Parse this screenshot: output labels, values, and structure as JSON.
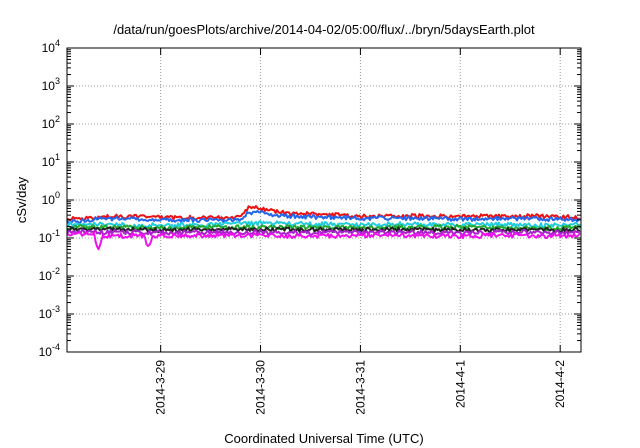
{
  "chart_data": {
    "type": "line",
    "title": "/data/run/goesPlots/archive/2014-04-02/05:00/flux/../bryn/5daysEarth.plot",
    "xlabel": "Coordinated Universal Time (UTC)",
    "ylabel": "cSv/day",
    "yscale": "log",
    "ylim": [
      0.0001,
      10000
    ],
    "y_ticks": [
      {
        "value": 0.0001,
        "base": "10",
        "exp": "-4"
      },
      {
        "value": 0.001,
        "base": "10",
        "exp": "-3"
      },
      {
        "value": 0.01,
        "base": "10",
        "exp": "-2"
      },
      {
        "value": 0.1,
        "base": "10",
        "exp": "-1"
      },
      {
        "value": 1,
        "base": "10",
        "exp": "0"
      },
      {
        "value": 10,
        "base": "10",
        "exp": "1"
      },
      {
        "value": 100,
        "base": "10",
        "exp": "2"
      },
      {
        "value": 1000,
        "base": "10",
        "exp": "3"
      },
      {
        "value": 10000,
        "base": "10",
        "exp": "4"
      }
    ],
    "xlim": [
      "2014-03-28T01:30",
      "2014-04-02T05:00"
    ],
    "x_ticks": [
      {
        "value": "2014-03-29T00:00",
        "label": "2014-3-29"
      },
      {
        "value": "2014-03-30T00:00",
        "label": "2014-3-30"
      },
      {
        "value": "2014-03-31T00:00",
        "label": "2014-3-31"
      },
      {
        "value": "2014-04-01T00:00",
        "label": "2014-4-1"
      },
      {
        "value": "2014-04-02T00:00",
        "label": "2014-4-2"
      }
    ],
    "grid": true,
    "legend": "none",
    "series": [
      {
        "color": "#ee1111",
        "points": [
          [
            "2014-03-28T01:30",
            0.3
          ],
          [
            "2014-03-28T12:00",
            0.36
          ],
          [
            "2014-03-29T00:00",
            0.34
          ],
          [
            "2014-03-29T12:00",
            0.33
          ],
          [
            "2014-03-29T19:30",
            0.36
          ],
          [
            "2014-03-29T21:00",
            0.62
          ],
          [
            "2014-03-30T00:00",
            0.58
          ],
          [
            "2014-03-30T06:00",
            0.45
          ],
          [
            "2014-03-30T12:00",
            0.42
          ],
          [
            "2014-03-30T18:00",
            0.4
          ],
          [
            "2014-03-31T00:00",
            0.36
          ],
          [
            "2014-03-31T12:00",
            0.38
          ],
          [
            "2014-04-01T00:00",
            0.36
          ],
          [
            "2014-04-01T12:00",
            0.37
          ],
          [
            "2014-04-02T00:00",
            0.36
          ],
          [
            "2014-04-02T05:00",
            0.33
          ]
        ]
      },
      {
        "color": "#2266ee",
        "points": [
          [
            "2014-03-28T01:30",
            0.27
          ],
          [
            "2014-03-28T12:00",
            0.32
          ],
          [
            "2014-03-29T00:00",
            0.3
          ],
          [
            "2014-03-29T12:00",
            0.29
          ],
          [
            "2014-03-29T19:30",
            0.31
          ],
          [
            "2014-03-29T21:00",
            0.46
          ],
          [
            "2014-03-30T00:00",
            0.44
          ],
          [
            "2014-03-30T06:00",
            0.38
          ],
          [
            "2014-03-30T12:00",
            0.36
          ],
          [
            "2014-03-30T18:00",
            0.34
          ],
          [
            "2014-03-31T00:00",
            0.32
          ],
          [
            "2014-03-31T12:00",
            0.33
          ],
          [
            "2014-04-01T00:00",
            0.31
          ],
          [
            "2014-04-01T12:00",
            0.32
          ],
          [
            "2014-04-02T00:00",
            0.31
          ],
          [
            "2014-04-02T05:00",
            0.29
          ]
        ]
      },
      {
        "color": "#22ccdd",
        "points": [
          [
            "2014-03-28T01:30",
            0.23
          ],
          [
            "2014-03-28T12:00",
            0.22
          ],
          [
            "2014-03-29T00:00",
            0.21
          ],
          [
            "2014-03-29T12:00",
            0.22
          ],
          [
            "2014-03-30T00:00",
            0.24
          ],
          [
            "2014-03-30T12:00",
            0.23
          ],
          [
            "2014-03-31T00:00",
            0.22
          ],
          [
            "2014-03-31T12:00",
            0.23
          ],
          [
            "2014-04-01T00:00",
            0.22
          ],
          [
            "2014-04-01T12:00",
            0.22
          ],
          [
            "2014-04-02T00:00",
            0.21
          ],
          [
            "2014-04-02T05:00",
            0.22
          ]
        ]
      },
      {
        "color": "#22aa33",
        "points": [
          [
            "2014-03-28T01:30",
            0.19
          ],
          [
            "2014-03-28T12:00",
            0.19
          ],
          [
            "2014-03-29T00:00",
            0.18
          ],
          [
            "2014-03-29T12:00",
            0.19
          ],
          [
            "2014-03-30T00:00",
            0.19
          ],
          [
            "2014-03-30T12:00",
            0.19
          ],
          [
            "2014-03-31T00:00",
            0.18
          ],
          [
            "2014-03-31T12:00",
            0.19
          ],
          [
            "2014-04-01T00:00",
            0.19
          ],
          [
            "2014-04-01T12:00",
            0.18
          ],
          [
            "2014-04-02T00:00",
            0.18
          ],
          [
            "2014-04-02T05:00",
            0.19
          ]
        ]
      },
      {
        "color": "#222222",
        "points": [
          [
            "2014-03-28T01:30",
            0.165
          ],
          [
            "2014-03-28T12:00",
            0.165
          ],
          [
            "2014-03-29T00:00",
            0.16
          ],
          [
            "2014-03-29T12:00",
            0.165
          ],
          [
            "2014-03-30T00:00",
            0.165
          ],
          [
            "2014-03-30T12:00",
            0.16
          ],
          [
            "2014-03-31T00:00",
            0.16
          ],
          [
            "2014-03-31T12:00",
            0.165
          ],
          [
            "2014-04-01T00:00",
            0.16
          ],
          [
            "2014-04-01T12:00",
            0.16
          ],
          [
            "2014-04-02T00:00",
            0.16
          ],
          [
            "2014-04-02T05:00",
            0.165
          ]
        ]
      },
      {
        "color": "#aa22cc",
        "points": [
          [
            "2014-03-28T01:30",
            0.14
          ],
          [
            "2014-03-28T12:00",
            0.14
          ],
          [
            "2014-03-29T00:00",
            0.135
          ],
          [
            "2014-03-29T12:00",
            0.14
          ],
          [
            "2014-03-30T00:00",
            0.14
          ],
          [
            "2014-03-30T12:00",
            0.135
          ],
          [
            "2014-03-31T00:00",
            0.14
          ],
          [
            "2014-03-31T12:00",
            0.14
          ],
          [
            "2014-04-01T00:00",
            0.135
          ],
          [
            "2014-04-01T12:00",
            0.14
          ],
          [
            "2014-04-02T00:00",
            0.135
          ],
          [
            "2014-04-02T05:00",
            0.14
          ]
        ]
      },
      {
        "color": "#ee11ee",
        "points": [
          [
            "2014-03-28T01:30",
            0.12
          ],
          [
            "2014-03-28T08:00",
            0.12
          ],
          [
            "2014-03-28T09:00",
            0.045
          ],
          [
            "2014-03-28T10:00",
            0.11
          ],
          [
            "2014-03-28T20:00",
            0.115
          ],
          [
            "2014-03-28T21:00",
            0.055
          ],
          [
            "2014-03-28T22:00",
            0.11
          ],
          [
            "2014-03-29T12:00",
            0.115
          ],
          [
            "2014-03-30T00:00",
            0.115
          ],
          [
            "2014-03-30T12:00",
            0.11
          ],
          [
            "2014-03-31T00:00",
            0.115
          ],
          [
            "2014-03-31T12:00",
            0.115
          ],
          [
            "2014-04-01T00:00",
            0.11
          ],
          [
            "2014-04-01T12:00",
            0.115
          ],
          [
            "2014-04-02T00:00",
            0.11
          ],
          [
            "2014-04-02T05:00",
            0.115
          ]
        ]
      }
    ]
  }
}
